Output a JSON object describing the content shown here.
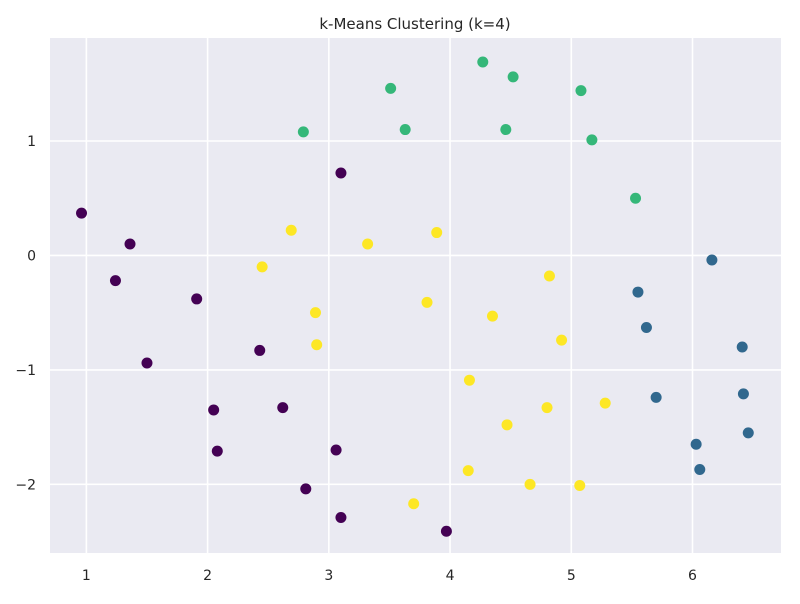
{
  "chart_data": {
    "type": "scatter",
    "title": "k-Means Clustering (k=4)",
    "xlabel": "",
    "ylabel": "",
    "xlim": [
      0.7,
      6.73
    ],
    "ylim": [
      -2.6,
      1.9
    ],
    "xticks": [
      1,
      2,
      3,
      4,
      5,
      6
    ],
    "yticks": [
      -2,
      -1,
      0,
      1
    ],
    "grid": true,
    "colors": {
      "background": "#eaeaf2",
      "grid": "#ffffff",
      "clusters": [
        "#440154",
        "#31688e",
        "#35b779",
        "#fde725"
      ]
    },
    "points": [
      {
        "x": 0.96,
        "y": 0.37,
        "cluster": 0
      },
      {
        "x": 1.36,
        "y": 0.1,
        "cluster": 0
      },
      {
        "x": 1.24,
        "y": -0.22,
        "cluster": 0
      },
      {
        "x": 1.91,
        "y": -0.38,
        "cluster": 0
      },
      {
        "x": 1.5,
        "y": -0.94,
        "cluster": 0
      },
      {
        "x": 2.43,
        "y": -0.83,
        "cluster": 0
      },
      {
        "x": 2.05,
        "y": -1.35,
        "cluster": 0
      },
      {
        "x": 2.08,
        "y": -1.71,
        "cluster": 0
      },
      {
        "x": 2.62,
        "y": -1.33,
        "cluster": 0
      },
      {
        "x": 3.06,
        "y": -1.7,
        "cluster": 0
      },
      {
        "x": 2.81,
        "y": -2.04,
        "cluster": 0
      },
      {
        "x": 3.1,
        "y": -2.29,
        "cluster": 0
      },
      {
        "x": 3.97,
        "y": -2.41,
        "cluster": 0
      },
      {
        "x": 3.1,
        "y": 0.72,
        "cluster": 0
      },
      {
        "x": 6.16,
        "y": -0.04,
        "cluster": 1
      },
      {
        "x": 5.55,
        "y": -0.32,
        "cluster": 1
      },
      {
        "x": 5.62,
        "y": -0.63,
        "cluster": 1
      },
      {
        "x": 6.41,
        "y": -0.8,
        "cluster": 1
      },
      {
        "x": 5.7,
        "y": -1.24,
        "cluster": 1
      },
      {
        "x": 6.42,
        "y": -1.21,
        "cluster": 1
      },
      {
        "x": 6.46,
        "y": -1.55,
        "cluster": 1
      },
      {
        "x": 6.03,
        "y": -1.65,
        "cluster": 1
      },
      {
        "x": 6.06,
        "y": -1.87,
        "cluster": 1
      },
      {
        "x": 2.79,
        "y": 1.08,
        "cluster": 2
      },
      {
        "x": 3.51,
        "y": 1.46,
        "cluster": 2
      },
      {
        "x": 3.63,
        "y": 1.1,
        "cluster": 2
      },
      {
        "x": 4.27,
        "y": 1.69,
        "cluster": 2
      },
      {
        "x": 4.52,
        "y": 1.56,
        "cluster": 2
      },
      {
        "x": 4.46,
        "y": 1.1,
        "cluster": 2
      },
      {
        "x": 5.08,
        "y": 1.44,
        "cluster": 2
      },
      {
        "x": 5.17,
        "y": 1.01,
        "cluster": 2
      },
      {
        "x": 5.53,
        "y": 0.5,
        "cluster": 2
      },
      {
        "x": 2.69,
        "y": 0.22,
        "cluster": 3
      },
      {
        "x": 3.32,
        "y": 0.1,
        "cluster": 3
      },
      {
        "x": 3.89,
        "y": 0.2,
        "cluster": 3
      },
      {
        "x": 2.45,
        "y": -0.1,
        "cluster": 3
      },
      {
        "x": 4.82,
        "y": -0.18,
        "cluster": 3
      },
      {
        "x": 3.81,
        "y": -0.41,
        "cluster": 3
      },
      {
        "x": 2.89,
        "y": -0.5,
        "cluster": 3
      },
      {
        "x": 4.35,
        "y": -0.53,
        "cluster": 3
      },
      {
        "x": 2.9,
        "y": -0.78,
        "cluster": 3
      },
      {
        "x": 4.92,
        "y": -0.74,
        "cluster": 3
      },
      {
        "x": 4.16,
        "y": -1.09,
        "cluster": 3
      },
      {
        "x": 5.28,
        "y": -1.29,
        "cluster": 3
      },
      {
        "x": 4.8,
        "y": -1.33,
        "cluster": 3
      },
      {
        "x": 4.47,
        "y": -1.48,
        "cluster": 3
      },
      {
        "x": 4.15,
        "y": -1.88,
        "cluster": 3
      },
      {
        "x": 4.66,
        "y": -2.0,
        "cluster": 3
      },
      {
        "x": 5.07,
        "y": -2.01,
        "cluster": 3
      },
      {
        "x": 3.7,
        "y": -2.17,
        "cluster": 3
      }
    ]
  }
}
